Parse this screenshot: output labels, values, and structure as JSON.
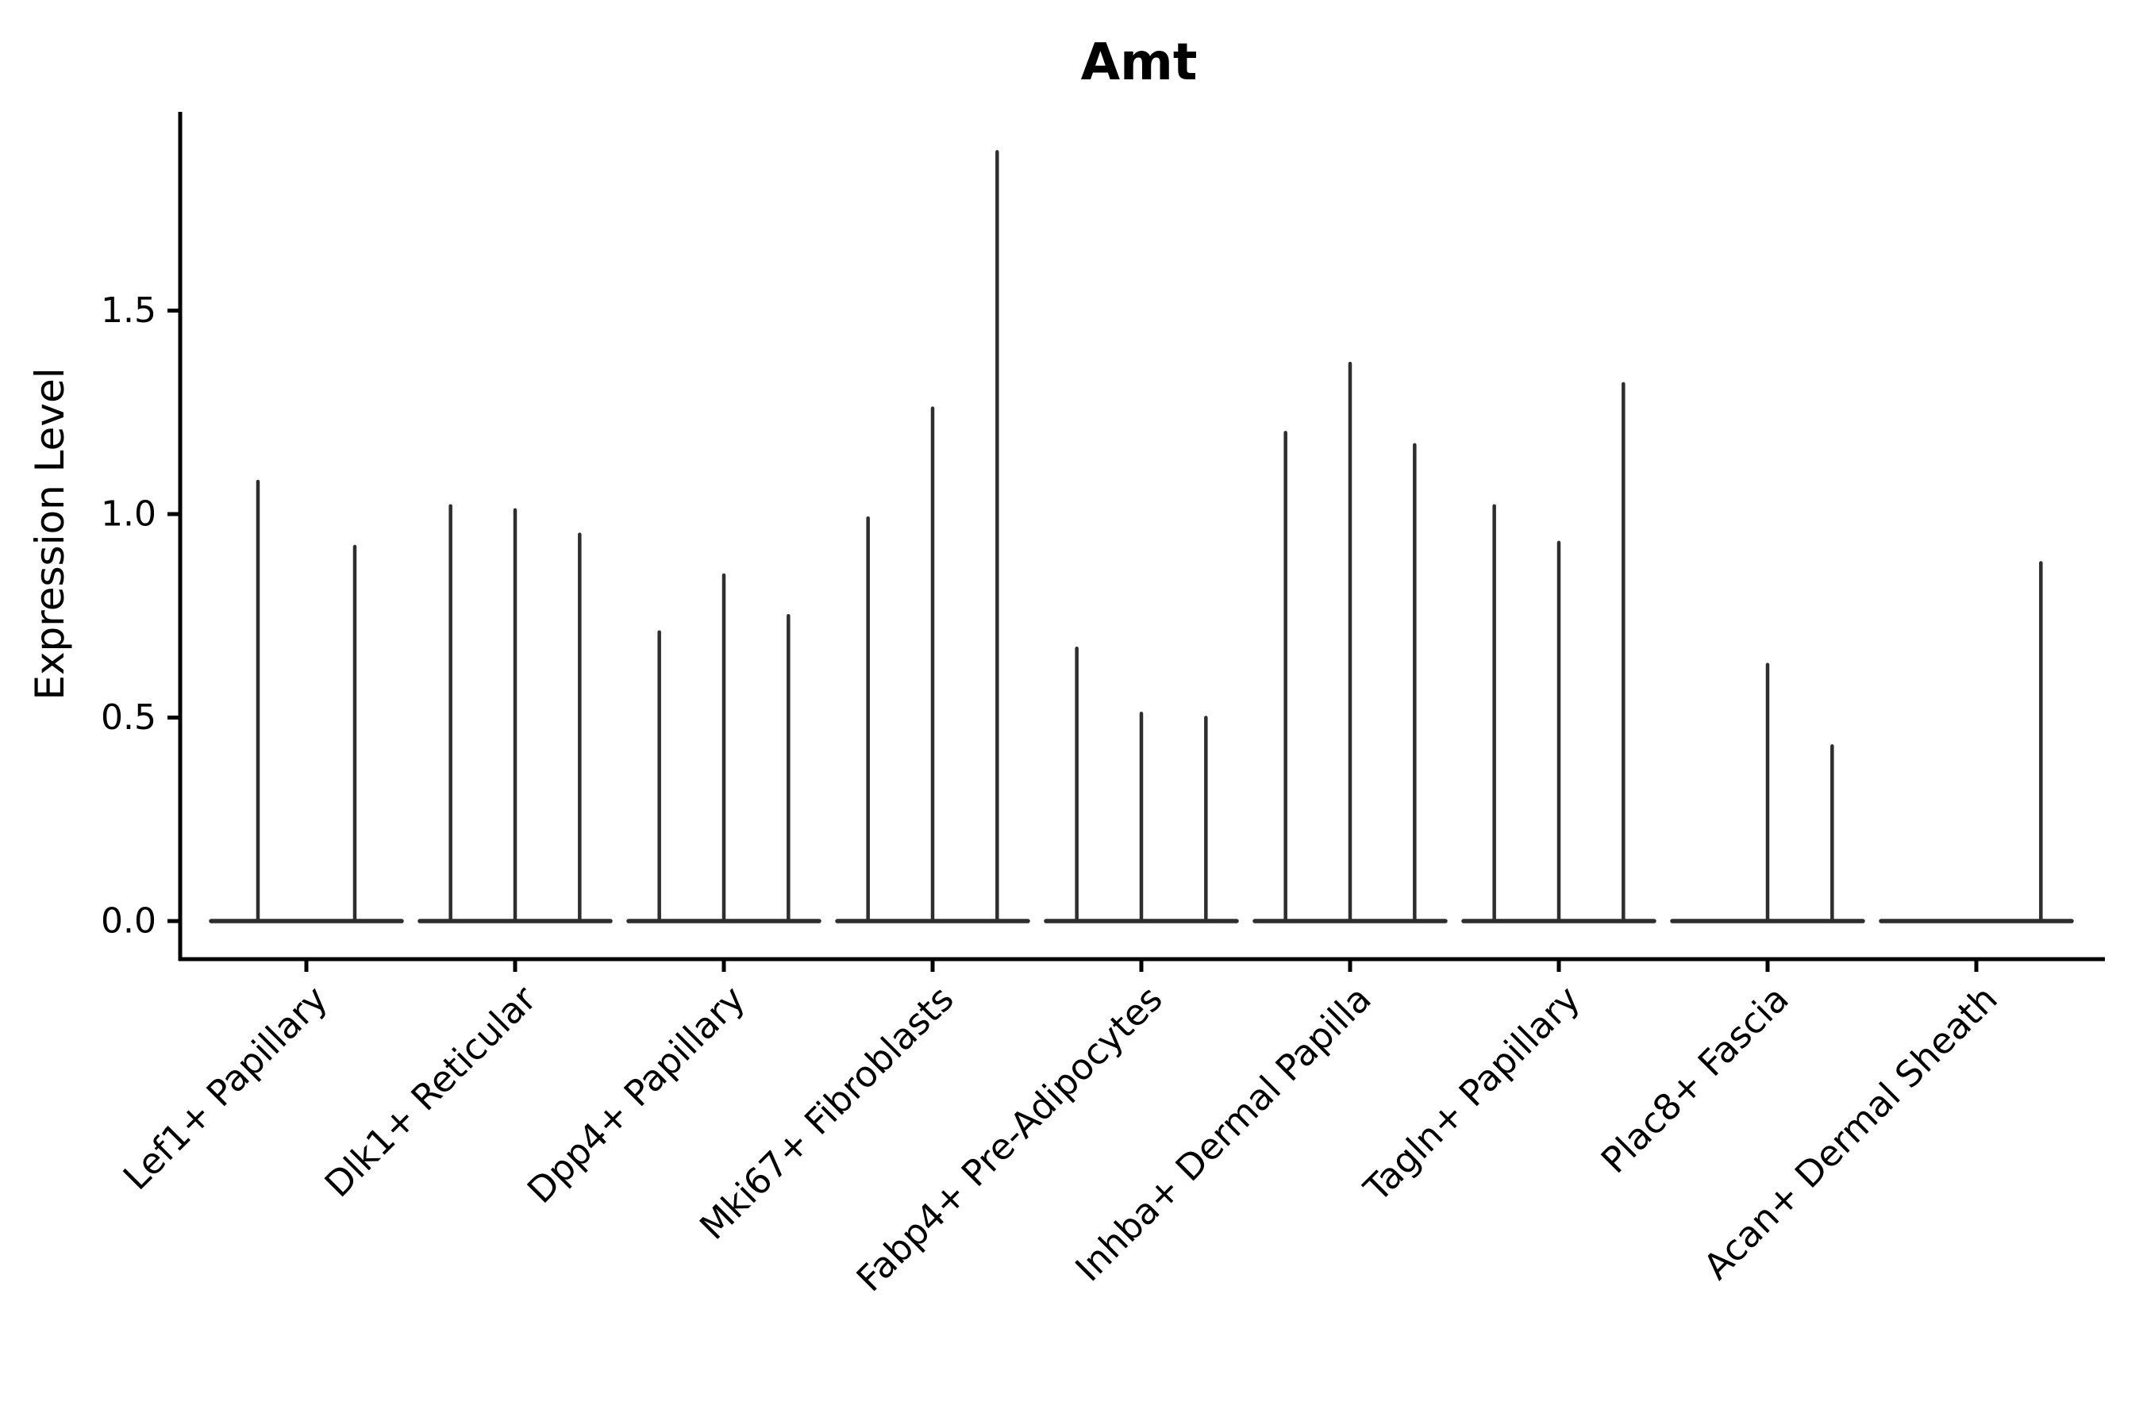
{
  "figure": {
    "background": "#ffffff"
  },
  "chart_data": {
    "type": "violin",
    "title": "Amt",
    "ylabel": "Expression Level",
    "xlabel": "",
    "style": "thin spike violins; wide flat base at 0 (most observations at zero), narrow spike up to max expression",
    "grid": false,
    "legend": "none",
    "ylim": [
      0.0,
      1.99
    ],
    "y_ticks": [
      "0.0",
      "0.5",
      "1.0",
      "1.5"
    ],
    "y_tick_values": [
      0.0,
      0.5,
      1.0,
      1.5
    ],
    "categories": [
      "Lef1+ Papillary",
      "Dlk1+ Reticular",
      "Dpp4+ Papillary",
      "Mki67+ Fibroblasts",
      "Fabp4+ Pre-Adipocytes",
      "Inhba+ Dermal Papilla",
      "Tagln+ Papillary",
      "Plac8+ Fascia",
      "Acan+ Dermal Sheath"
    ],
    "groups": [
      {
        "label": "Lef1+ Papillary",
        "violin_max_values": [
          1.08,
          0.92
        ]
      },
      {
        "label": "Dlk1+ Reticular",
        "violin_max_values": [
          1.02,
          1.01,
          0.95
        ]
      },
      {
        "label": "Dpp4+ Papillary",
        "violin_max_values": [
          0.71,
          0.85,
          0.75
        ]
      },
      {
        "label": "Mki67+ Fibroblasts",
        "violin_max_values": [
          0.99,
          1.26,
          1.89
        ]
      },
      {
        "label": "Fabp4+ Pre-Adipocytes",
        "violin_max_values": [
          0.67,
          0.51,
          0.5
        ]
      },
      {
        "label": "Inhba+ Dermal Papilla",
        "violin_max_values": [
          1.2,
          1.37,
          1.17
        ]
      },
      {
        "label": "Tagln+ Papillary",
        "violin_max_values": [
          1.02,
          0.93,
          1.32
        ]
      },
      {
        "label": "Plac8+ Fascia",
        "violin_max_values": [
          0.0,
          0.63,
          0.43
        ]
      },
      {
        "label": "Acan+ Dermal Sheath",
        "violin_max_values": [
          0.0,
          0.0,
          0.88
        ]
      }
    ],
    "colors": {
      "violin": "#2e2e2e",
      "axis": "#000000",
      "text": "#000000"
    }
  }
}
